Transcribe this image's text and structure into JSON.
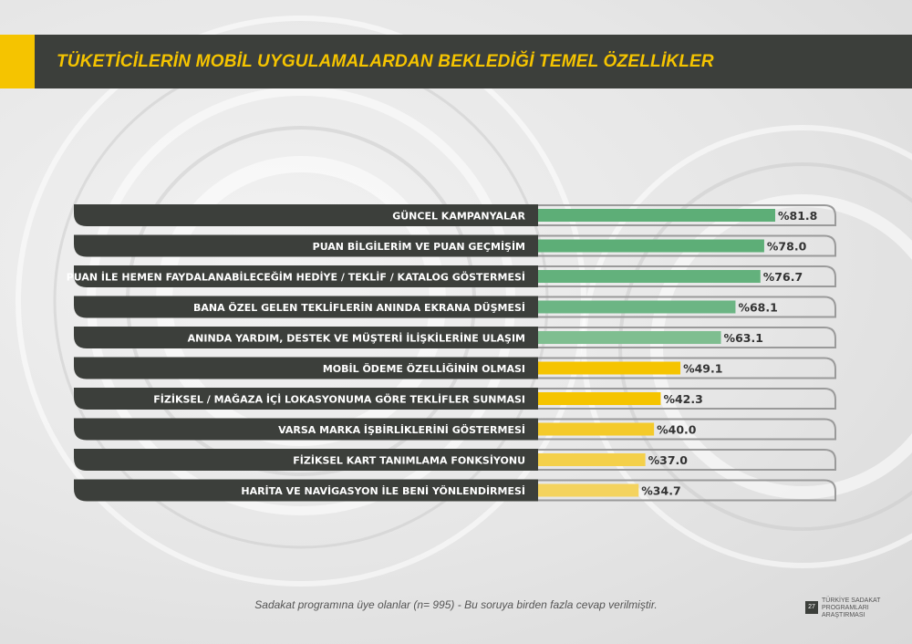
{
  "header": {
    "title": "TÜKETİCİLERİN MOBİL UYGULAMALARDAN BEKLEDİĞİ TEMEL ÖZELLİKLER"
  },
  "colors": {
    "dark": "#3c3f3b",
    "green": "#5dae77",
    "green_light": "#7fbe90",
    "yellow": "#f5c400",
    "yellow_light": "#f4d35e"
  },
  "chart_data": {
    "type": "bar",
    "orientation": "horizontal",
    "value_prefix": "%",
    "xlim": [
      0,
      100
    ],
    "categories": [
      "GÜNCEL KAMPANYALAR",
      "PUAN BİLGİLERİM VE PUAN GEÇMİŞİM",
      "PUAN İLE HEMEN FAYDALANABİLECEĞİM HEDİYE / TEKLİF / KATALOG GÖSTERMESİ",
      "BANA ÖZEL GELEN TEKLİFLERİN ANINDA EKRANA DÜŞMESİ",
      "ANINDA YARDIM, DESTEK VE MÜŞTERİ İLİŞKİLERİNE ULAŞIM",
      "MOBİL ÖDEME ÖZELLİĞİNİN OLMASI",
      "FİZİKSEL / MAĞAZA İÇİ LOKASYONUMA GÖRE TEKLİFLER SUNMASI",
      "VARSA MARKA İŞBİRLİKLERİNİ GÖSTERMESİ",
      "FİZİKSEL KART TANIMLAMA FONKSİYONU",
      "HARİTA VE NAVİGASYON İLE BENİ YÖNLENDİRMESİ"
    ],
    "values": [
      81.8,
      78.0,
      76.7,
      68.1,
      63.1,
      49.1,
      42.3,
      40.0,
      37.0,
      34.7
    ],
    "labels": [
      "%81.8",
      "%78.0",
      "%76.7",
      "%68.1",
      "%63.1",
      "%49.1",
      "%42.3",
      "%40.0",
      "%37.0",
      "%34.7"
    ],
    "bar_colors": [
      "#5dae77",
      "#5dae77",
      "#63b17c",
      "#6cb584",
      "#7fbe90",
      "#f5c400",
      "#f5c400",
      "#f4ca2a",
      "#f4d04a",
      "#f4d35e"
    ]
  },
  "footnote": "Sadakat programına üye olanlar (n= 995) - Bu soruya birden fazla cevap verilmiştir.",
  "footer": {
    "page_number": "27",
    "brand_lines": [
      "TÜRKİYE SADAKAT",
      "PROGRAMLARI",
      "ARAŞTIRMASI"
    ]
  }
}
